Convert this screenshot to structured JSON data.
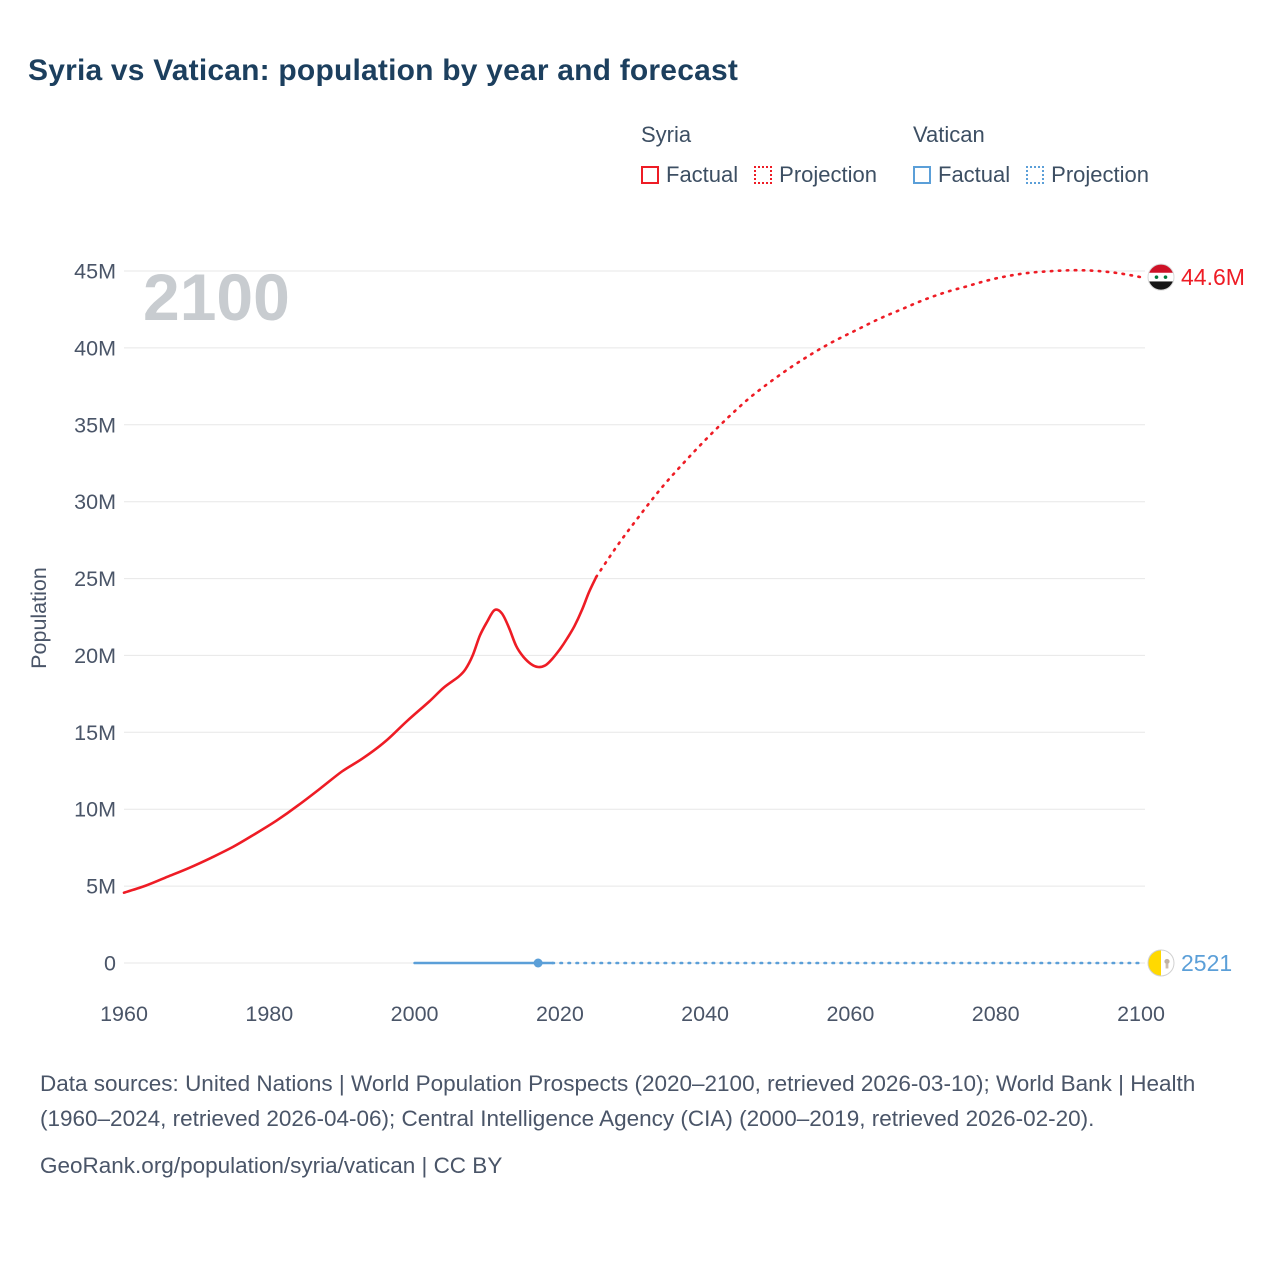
{
  "title": "Syria vs Vatican: population by year and forecast",
  "legend": {
    "syria": {
      "name": "Syria",
      "factual_label": "Factual",
      "projection_label": "Projection",
      "color": "#ee1c25"
    },
    "vatican": {
      "name": "Vatican",
      "factual_label": "Factual",
      "projection_label": "Projection",
      "color": "#5b9fd8"
    }
  },
  "chart_data": {
    "type": "line",
    "title": "Syria vs Vatican: population by year and forecast",
    "xlabel": "",
    "ylabel": "Population",
    "watermark": "2100",
    "grid": "horizontal",
    "legend_position": "top-right",
    "xlim": [
      1960,
      2112
    ],
    "ylim": [
      0,
      45
    ],
    "x_ticks": [
      1960,
      1980,
      2000,
      2020,
      2040,
      2060,
      2080,
      2100
    ],
    "y_ticks": [
      0,
      5,
      10,
      15,
      20,
      25,
      30,
      35,
      40,
      45
    ],
    "y_tick_labels": [
      "0",
      "5M",
      "10M",
      "15M",
      "20M",
      "25M",
      "30M",
      "35M",
      "40M",
      "45M"
    ],
    "y_unit": "millions",
    "series": [
      {
        "name": "Syria Factual",
        "color": "#ee1c25",
        "style": "solid",
        "points": [
          [
            1960,
            4.57
          ],
          [
            1963,
            5.03
          ],
          [
            1966,
            5.61
          ],
          [
            1969,
            6.19
          ],
          [
            1972,
            6.84
          ],
          [
            1975,
            7.55
          ],
          [
            1978,
            8.38
          ],
          [
            1981,
            9.26
          ],
          [
            1984,
            10.26
          ],
          [
            1987,
            11.34
          ],
          [
            1990,
            12.45
          ],
          [
            1993,
            13.35
          ],
          [
            1996,
            14.42
          ],
          [
            1999,
            15.75
          ],
          [
            2002,
            17.0
          ],
          [
            2004,
            17.9
          ],
          [
            2006,
            18.6
          ],
          [
            2007,
            19.1
          ],
          [
            2008,
            20.0
          ],
          [
            2009,
            21.3
          ],
          [
            2010,
            22.2
          ],
          [
            2011,
            22.95
          ],
          [
            2012,
            22.75
          ],
          [
            2013,
            21.8
          ],
          [
            2014,
            20.6
          ],
          [
            2015,
            19.9
          ],
          [
            2016,
            19.45
          ],
          [
            2017,
            19.25
          ],
          [
            2018,
            19.35
          ],
          [
            2019,
            19.8
          ],
          [
            2020,
            20.4
          ],
          [
            2021,
            21.1
          ],
          [
            2022,
            21.9
          ],
          [
            2023,
            22.9
          ],
          [
            2024,
            24.1
          ],
          [
            2025,
            25.1
          ]
        ]
      },
      {
        "name": "Syria Projection",
        "color": "#ee1c25",
        "style": "dotted",
        "points": [
          [
            2025,
            25.1
          ],
          [
            2028,
            27.2
          ],
          [
            2031,
            29.1
          ],
          [
            2034,
            30.9
          ],
          [
            2037,
            32.5
          ],
          [
            2040,
            34.0
          ],
          [
            2043,
            35.4
          ],
          [
            2046,
            36.7
          ],
          [
            2049,
            37.8
          ],
          [
            2052,
            38.8
          ],
          [
            2055,
            39.7
          ],
          [
            2058,
            40.5
          ],
          [
            2061,
            41.2
          ],
          [
            2064,
            41.9
          ],
          [
            2067,
            42.5
          ],
          [
            2070,
            43.1
          ],
          [
            2073,
            43.6
          ],
          [
            2076,
            44.0
          ],
          [
            2079,
            44.4
          ],
          [
            2082,
            44.7
          ],
          [
            2085,
            44.9
          ],
          [
            2088,
            45.0
          ],
          [
            2091,
            45.05
          ],
          [
            2094,
            45.0
          ],
          [
            2097,
            44.85
          ],
          [
            2100,
            44.6
          ]
        ],
        "end_label": {
          "text": "44.6M",
          "flag": "syria",
          "value": 44.6
        }
      },
      {
        "name": "Vatican Factual",
        "color": "#5b9fd8",
        "style": "solid",
        "points": [
          [
            2000,
            0.0008
          ],
          [
            2005,
            0.0008
          ],
          [
            2010,
            0.0008
          ],
          [
            2015,
            0.0008
          ],
          [
            2019,
            0.0008
          ]
        ],
        "marker": [
          2017,
          0.0008
        ]
      },
      {
        "name": "Vatican Projection",
        "color": "#5b9fd8",
        "style": "dotted",
        "points": [
          [
            2019,
            0.0008
          ],
          [
            2040,
            0.001
          ],
          [
            2060,
            0.0015
          ],
          [
            2080,
            0.002
          ],
          [
            2100,
            0.0025
          ]
        ],
        "end_label": {
          "text": "2521",
          "flag": "vatican",
          "value": 0.0025
        }
      }
    ]
  },
  "footer": {
    "sources": "Data sources: United Nations | World Population Prospects (2020–2100, retrieved 2026-03-10); World Bank | Health (1960–2024, retrieved 2026-04-06); Central Intelligence Agency (CIA) (2000–2019, retrieved 2026-02-20).",
    "attribution": "GeoRank.org/population/syria/vatican | CC BY"
  }
}
